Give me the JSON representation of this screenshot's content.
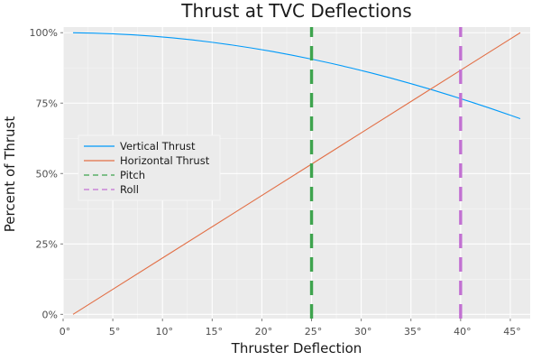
{
  "chart_data": {
    "type": "line",
    "title": "Thrust at TVC Deflections",
    "xlabel": "Thruster Deflection",
    "ylabel": "Percent of Thrust",
    "xlim": [
      0,
      47
    ],
    "ylim": [
      -1.5,
      102
    ],
    "x_ticks": [
      0,
      5,
      10,
      15,
      20,
      25,
      30,
      35,
      40,
      45
    ],
    "x_tick_labels": [
      "0°",
      "5°",
      "10°",
      "15°",
      "20°",
      "25°",
      "30°",
      "35°",
      "40°",
      "45°"
    ],
    "y_ticks": [
      0,
      25,
      50,
      75,
      100
    ],
    "y_tick_labels": [
      "0%",
      "25%",
      "50%",
      "75%",
      "100%"
    ],
    "grid": true,
    "legend_position": "left",
    "series": [
      {
        "name": "Vertical Thrust",
        "color": "#009af9",
        "style": "solid",
        "x": [
          1,
          3,
          5,
          7,
          9,
          11,
          13,
          15,
          17,
          19,
          21,
          23,
          25,
          27,
          29,
          31,
          33,
          35,
          37,
          39,
          41,
          43,
          45,
          46
        ],
        "values": [
          99.98,
          99.86,
          99.62,
          99.25,
          98.77,
          98.16,
          97.44,
          96.59,
          95.63,
          94.55,
          93.36,
          92.05,
          90.63,
          89.1,
          87.46,
          85.72,
          83.87,
          81.92,
          79.86,
          77.71,
          75.47,
          73.14,
          70.71,
          69.47
        ]
      },
      {
        "name": "Horizontal Thrust",
        "color": "#e26f46",
        "style": "solid",
        "x": [
          1,
          5,
          10,
          15,
          20,
          25,
          30,
          35,
          40,
          45,
          46
        ],
        "values": [
          0,
          8.89,
          20.0,
          31.11,
          42.22,
          53.33,
          64.44,
          75.56,
          86.67,
          97.78,
          100
        ]
      },
      {
        "name": "Pitch",
        "color": "#3ea44e",
        "style": "dashed",
        "x": [
          25,
          25
        ],
        "values": [
          -1.5,
          102
        ]
      },
      {
        "name": "Roll",
        "color": "#c270d2",
        "style": "dashed",
        "x": [
          40,
          40
        ],
        "values": [
          -1.5,
          102
        ]
      }
    ]
  }
}
